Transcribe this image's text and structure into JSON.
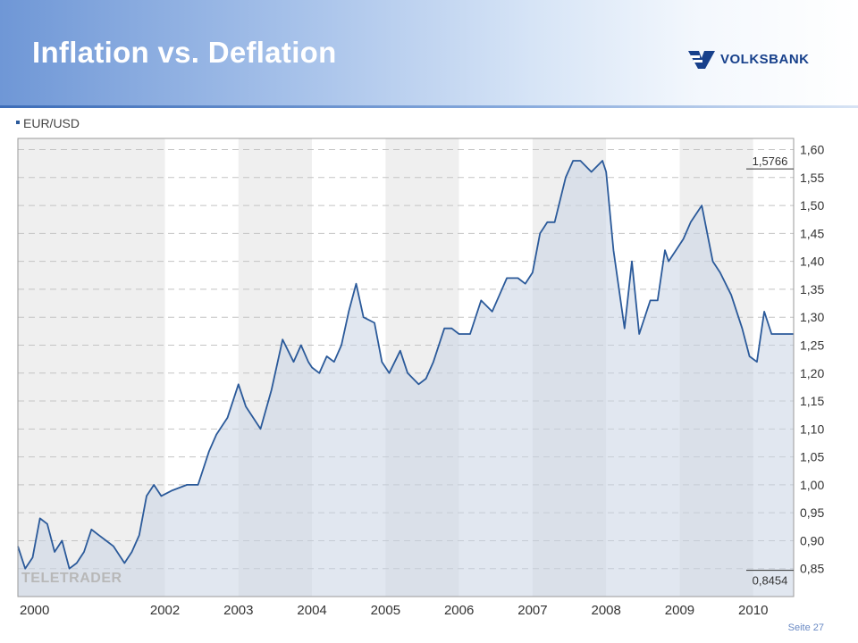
{
  "slide": {
    "title": "Inflation vs. Deflation",
    "logo_text": "VOLKSBANK",
    "footer": "Seite 27",
    "brand_color": "#17408b"
  },
  "chart_data": {
    "type": "line",
    "legend": "EUR/USD",
    "watermark": "TELETRADER",
    "ylim": [
      0.8,
      1.62
    ],
    "yticks": [
      "1,60",
      "1,55",
      "1,50",
      "1,45",
      "1,40",
      "1,35",
      "1,30",
      "1,25",
      "1,20",
      "1,15",
      "1,10",
      "1,05",
      "1,00",
      "0,95",
      "0,90",
      "0,85"
    ],
    "ytick_values": [
      1.6,
      1.55,
      1.5,
      1.45,
      1.4,
      1.35,
      1.3,
      1.25,
      1.2,
      1.15,
      1.1,
      1.05,
      1.0,
      0.95,
      0.9,
      0.85
    ],
    "xlim": [
      2000.0,
      2010.55
    ],
    "xticks": [
      "2000",
      "2002",
      "2003",
      "2004",
      "2005",
      "2006",
      "2007",
      "2008",
      "2009",
      "2010"
    ],
    "xtick_values": [
      2000.0,
      2002.0,
      2003.0,
      2004.0,
      2005.0,
      2006.0,
      2007.0,
      2008.0,
      2009.0,
      2010.0
    ],
    "max_label": "1,5766",
    "max_value": 1.5766,
    "min_label": "0,8454",
    "min_value": 0.8454,
    "grid": true,
    "line_color": "#2b5a9a",
    "fill_color": "#c9d3e3",
    "series": [
      {
        "x": [
          2000.0,
          2000.1,
          2000.2,
          2000.3,
          2000.4,
          2000.5,
          2000.6,
          2000.7,
          2000.8,
          2000.9,
          2001.0,
          2001.1,
          2001.2,
          2001.3,
          2001.45,
          2001.55,
          2001.65,
          2001.75,
          2001.85,
          2001.95,
          2002.1,
          2002.3,
          2002.45,
          2002.6,
          2002.7,
          2002.85,
          2003.0,
          2003.1,
          2003.3,
          2003.45,
          2003.6,
          2003.75,
          2003.85,
          2003.95,
          2004.0,
          2004.1,
          2004.2,
          2004.3,
          2004.4,
          2004.5,
          2004.6,
          2004.7,
          2004.85,
          2004.95,
          2005.05,
          2005.2,
          2005.3,
          2005.45,
          2005.55,
          2005.65,
          2005.8,
          2005.9,
          2006.0,
          2006.15,
          2006.3,
          2006.45,
          2006.55,
          2006.65,
          2006.8,
          2006.9,
          2007.0,
          2007.1,
          2007.2,
          2007.3,
          2007.45,
          2007.55,
          2007.65,
          2007.8,
          2007.95,
          2008.0,
          2008.1,
          2008.25,
          2008.35,
          2008.45,
          2008.6,
          2008.7,
          2008.8,
          2008.85,
          2008.95,
          2009.05,
          2009.15,
          2009.3,
          2009.45,
          2009.55,
          2009.7,
          2009.85,
          2009.95,
          2010.05,
          2010.15,
          2010.25,
          2010.35,
          2010.45,
          2010.55
        ],
        "y": [
          0.89,
          0.85,
          0.87,
          0.94,
          0.93,
          0.88,
          0.9,
          0.85,
          0.86,
          0.88,
          0.92,
          0.91,
          0.9,
          0.89,
          0.86,
          0.88,
          0.91,
          0.98,
          1.0,
          0.98,
          0.99,
          1.0,
          1.0,
          1.06,
          1.09,
          1.12,
          1.18,
          1.14,
          1.1,
          1.17,
          1.26,
          1.22,
          1.25,
          1.22,
          1.21,
          1.2,
          1.23,
          1.22,
          1.25,
          1.31,
          1.36,
          1.3,
          1.29,
          1.22,
          1.2,
          1.24,
          1.2,
          1.18,
          1.19,
          1.22,
          1.28,
          1.28,
          1.27,
          1.27,
          1.33,
          1.31,
          1.34,
          1.37,
          1.37,
          1.36,
          1.38,
          1.45,
          1.47,
          1.47,
          1.55,
          1.58,
          1.58,
          1.56,
          1.58,
          1.56,
          1.42,
          1.28,
          1.4,
          1.27,
          1.33,
          1.33,
          1.42,
          1.4,
          1.42,
          1.44,
          1.47,
          1.5,
          1.4,
          1.38,
          1.34,
          1.28,
          1.23,
          1.22,
          1.31,
          1.27,
          1.27,
          1.27,
          1.27
        ]
      }
    ]
  }
}
